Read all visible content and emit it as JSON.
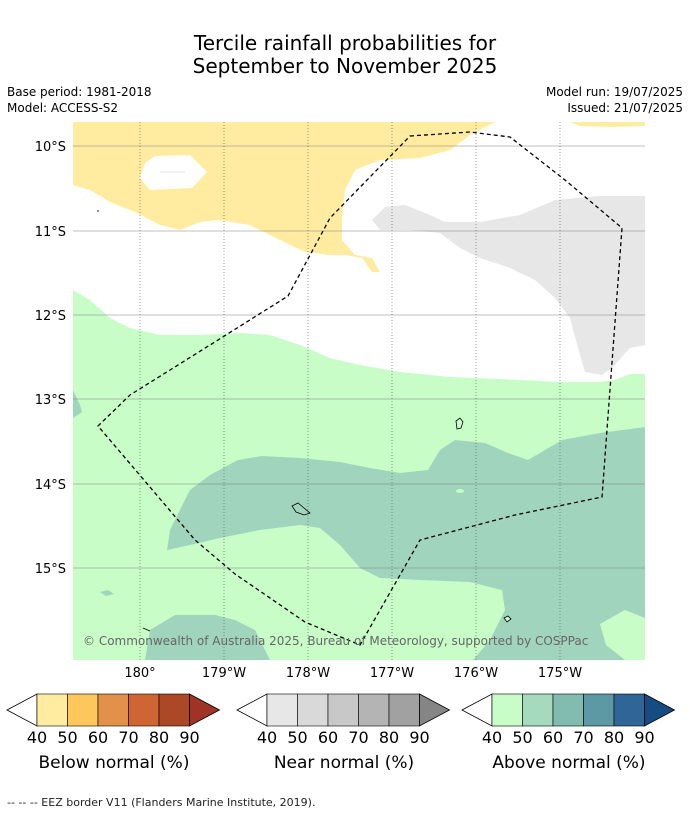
{
  "header": {
    "title_line1": "Tercile rainfall probabilities for",
    "title_line2": "September to November 2025",
    "base_period": "Base period: 1981-2018",
    "model": "Model: ACCESS-S2",
    "model_run": "Model run: 19/07/2025",
    "issued": "Issued: 21/07/2025"
  },
  "map": {
    "lat_labels": [
      "10°S",
      "11°S",
      "12°S",
      "13°S",
      "14°S",
      "15°S"
    ],
    "lon_labels": [
      "180°",
      "179°W",
      "178°W",
      "177°W",
      "176°W",
      "175°W"
    ],
    "copyright": "© Commonwealth of Australia 2025, Bureau of Meteorology, supported by COSPPac"
  },
  "colorbars": {
    "below": {
      "label": "Below normal (%)",
      "ticks": [
        "40",
        "50",
        "60",
        "70",
        "80",
        "90"
      ],
      "colors": [
        "#ffeca0",
        "#fec75b",
        "#e3914a",
        "#cf6533",
        "#ac4826",
        "#9e3326"
      ]
    },
    "near": {
      "label": "Near normal (%)",
      "ticks": [
        "40",
        "50",
        "60",
        "70",
        "80",
        "90"
      ],
      "colors": [
        "#e7e7e7",
        "#d9d9d9",
        "#c8c8c8",
        "#b4b4b4",
        "#a1a1a1",
        "#858585"
      ]
    },
    "above": {
      "label": "Above normal (%)",
      "ticks": [
        "40",
        "50",
        "60",
        "70",
        "80",
        "90"
      ],
      "colors": [
        "#c8fdc8",
        "#a6dabf",
        "#82bcae",
        "#5d98a5",
        "#306598",
        "#154c81"
      ]
    }
  },
  "footer": {
    "legend_text": "--  --  -- EEZ border V11 (Flanders Marine Institute, 2019)."
  }
}
